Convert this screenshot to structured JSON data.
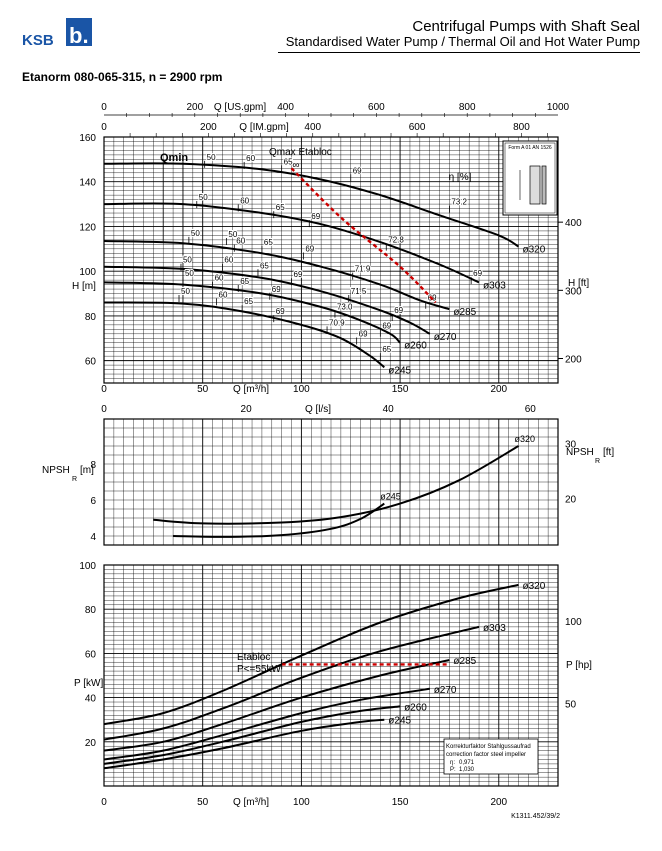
{
  "header": {
    "brand": "KSB",
    "brand_mark": "b.",
    "title": "Centrifugal Pumps with Shaft Seal",
    "subtitle": "Standardised Water Pump / Thermal Oil and Hot Water Pump"
  },
  "pump": {
    "title": "Etanorm 080-065-315, n = 2900 rpm"
  },
  "chart_data": {
    "type": "line",
    "x_axes": {
      "q_usgpm": {
        "label": "Q [US.gpm]",
        "max": 1000,
        "ticks": [
          "0",
          "200",
          "400",
          "600",
          "800",
          "1000"
        ]
      },
      "q_imgpm": {
        "label": "Q [IM.gpm]",
        "max": 800,
        "ticks": [
          "0",
          "200",
          "400",
          "600",
          "800"
        ]
      },
      "q_m3h": {
        "label": "Q [m³/h]",
        "max": 230,
        "ticks": [
          "0",
          "50",
          "100",
          "150",
          "200"
        ]
      },
      "q_ls": {
        "label": "Q [l/s]",
        "max": 63.9,
        "ticks": [
          "0",
          "20",
          "40",
          "60"
        ]
      }
    },
    "head_chart": {
      "ylabel": "H [m]",
      "ylabel_right": "H [ft]",
      "ylim": [
        50,
        160
      ],
      "yticks": [
        "60",
        "80",
        "100",
        "120",
        "140",
        "160"
      ],
      "yticks_right": [
        "200",
        "300",
        "400"
      ],
      "diameters": [
        {
          "name": "ø320",
          "points": [
            [
              0,
              148
            ],
            [
              40,
              148
            ],
            [
              80,
              145.5
            ],
            [
              110,
              141
            ],
            [
              140,
              134
            ],
            [
              170,
              125
            ],
            [
              200,
              116
            ],
            [
              210,
              111
            ]
          ]
        },
        {
          "name": "ø303",
          "points": [
            [
              0,
              130
            ],
            [
              40,
              130
            ],
            [
              80,
              126
            ],
            [
              110,
              121
            ],
            [
              140,
              113
            ],
            [
              170,
              103
            ],
            [
              190,
              95
            ]
          ]
        },
        {
          "name": "ø285",
          "points": [
            [
              0,
              113.5
            ],
            [
              40,
              112.5
            ],
            [
              80,
              108
            ],
            [
              110,
              102
            ],
            [
              140,
              94
            ],
            [
              160,
              87
            ],
            [
              175,
              83
            ]
          ]
        },
        {
          "name": "ø270",
          "points": [
            [
              0,
              102
            ],
            [
              40,
              101
            ],
            [
              80,
              97
            ],
            [
              110,
              91
            ],
            [
              140,
              82.5
            ],
            [
              155,
              77
            ],
            [
              165,
              72
            ]
          ]
        },
        {
          "name": "ø260",
          "points": [
            [
              0,
              95
            ],
            [
              40,
              94
            ],
            [
              80,
              90
            ],
            [
              110,
              84
            ],
            [
              130,
              78
            ],
            [
              145,
              72
            ],
            [
              150,
              68
            ]
          ]
        },
        {
          "name": "ø245",
          "points": [
            [
              0,
              86
            ],
            [
              40,
              85.5
            ],
            [
              70,
              82
            ],
            [
              100,
              76
            ],
            [
              120,
              70
            ],
            [
              135,
              62
            ],
            [
              142,
              57
            ]
          ]
        }
      ],
      "efficiency_labels": [
        {
          "text": "50",
          "q": 51,
          "h": 148
        },
        {
          "text": "60",
          "q": 71,
          "h": 147.5
        },
        {
          "text": "65",
          "q": 90,
          "h": 146
        },
        {
          "text": "69",
          "q": 125,
          "h": 142
        },
        {
          "text": "73.2",
          "q": 175,
          "h": 128
        },
        {
          "text": "50",
          "q": 47,
          "h": 130
        },
        {
          "text": "60",
          "q": 68,
          "h": 128.5
        },
        {
          "text": "65",
          "q": 86,
          "h": 125.5
        },
        {
          "text": "69",
          "q": 104,
          "h": 121.5
        },
        {
          "text": "72.8",
          "q": 143,
          "h": 111
        },
        {
          "text": "69",
          "q": 186,
          "h": 96
        },
        {
          "text": "50",
          "q": 43,
          "h": 114
        },
        {
          "text": "50",
          "q": 62,
          "h": 113.5
        },
        {
          "text": "60",
          "q": 66,
          "h": 110.5
        },
        {
          "text": "65",
          "q": 80,
          "h": 110
        },
        {
          "text": "69",
          "q": 101,
          "h": 107
        },
        {
          "text": "71.9",
          "q": 126,
          "h": 98
        },
        {
          "text": "69",
          "q": 163,
          "h": 85
        },
        {
          "text": "50",
          "q": 39,
          "h": 102
        },
        {
          "text": "60",
          "q": 60,
          "h": 102
        },
        {
          "text": "65",
          "q": 78,
          "h": 99.5
        },
        {
          "text": "69",
          "q": 95,
          "h": 95.5
        },
        {
          "text": "71.5",
          "q": 124,
          "h": 88
        },
        {
          "text": "69",
          "q": 146,
          "h": 79.5
        },
        {
          "text": "50",
          "q": 40,
          "h": 96
        },
        {
          "text": "60",
          "q": 55,
          "h": 94
        },
        {
          "text": "65",
          "q": 68,
          "h": 92.5
        },
        {
          "text": "69",
          "q": 84,
          "h": 89
        },
        {
          "text": "73.0",
          "q": 117,
          "h": 81
        },
        {
          "text": "69",
          "q": 140,
          "h": 72.5
        },
        {
          "text": "50",
          "q": 38,
          "h": 88
        },
        {
          "text": "60",
          "q": 57,
          "h": 86.5
        },
        {
          "text": "65",
          "q": 70,
          "h": 83.5
        },
        {
          "text": "69",
          "q": 86,
          "h": 79
        },
        {
          "text": "70.9",
          "q": 113,
          "h": 74
        },
        {
          "text": "69",
          "q": 128,
          "h": 69
        },
        {
          "text": "65",
          "q": 140,
          "h": 62
        }
      ],
      "qmin_label": "Qmin",
      "qmax_label": "Qmax Etabloc",
      "qmax_symbol": "∞",
      "eta_label": "η [%]",
      "qmax_line": [
        [
          95,
          146
        ],
        [
          120,
          124
        ],
        [
          150,
          102
        ],
        [
          168,
          86
        ]
      ],
      "inset_text": "Form A 01 AN 1526"
    },
    "npsh_chart": {
      "ylabel": "NPSH",
      "ylabel_sub": "R",
      "ylabel_unit": "[m]",
      "ylabel_right": "NPSH",
      "ylabel_right_sub": "R",
      "ylabel_right_unit": "[ft]",
      "ylim": [
        3.5,
        10.5
      ],
      "yticks": [
        "4",
        "6",
        "8"
      ],
      "yticks_right": [
        "20",
        "30"
      ],
      "series": [
        {
          "name": "ø320",
          "points": [
            [
              25,
              4.9
            ],
            [
              50,
              4.7
            ],
            [
              90,
              4.75
            ],
            [
              120,
              5.05
            ],
            [
              150,
              5.8
            ],
            [
              180,
              7.1
            ],
            [
              210,
              9.0
            ]
          ]
        },
        {
          "name": "ø245",
          "points": [
            [
              35,
              4.0
            ],
            [
              60,
              3.95
            ],
            [
              90,
              4.05
            ],
            [
              115,
              4.4
            ],
            [
              130,
              4.95
            ],
            [
              142,
              5.8
            ]
          ]
        }
      ]
    },
    "power_chart": {
      "ylabel": "P [kW]",
      "ylabel_right": "P [hp]",
      "ylim": [
        0,
        100
      ],
      "yticks": [
        "20",
        "40",
        "60",
        "80",
        "100"
      ],
      "yticks_right": [
        "50",
        "100"
      ],
      "series": [
        {
          "name": "ø320",
          "points": [
            [
              0,
              28
            ],
            [
              30,
              33
            ],
            [
              60,
              43
            ],
            [
              100,
              59
            ],
            [
              140,
              74
            ],
            [
              180,
              85
            ],
            [
              210,
              91
            ]
          ]
        },
        {
          "name": "ø303",
          "points": [
            [
              0,
              21
            ],
            [
              30,
              26
            ],
            [
              60,
              35
            ],
            [
              100,
              49
            ],
            [
              140,
              61
            ],
            [
              190,
              72
            ]
          ]
        },
        {
          "name": "ø285",
          "points": [
            [
              0,
              16
            ],
            [
              30,
              20
            ],
            [
              60,
              28
            ],
            [
              100,
              40
            ],
            [
              140,
              50
            ],
            [
              175,
              57
            ]
          ]
        },
        {
          "name": "ø270",
          "points": [
            [
              0,
              12
            ],
            [
              30,
              16
            ],
            [
              60,
              23
            ],
            [
              100,
              33
            ],
            [
              130,
              39
            ],
            [
              165,
              44
            ]
          ]
        },
        {
          "name": "ø260",
          "points": [
            [
              0,
              10
            ],
            [
              30,
              14
            ],
            [
              60,
              20
            ],
            [
              100,
              29
            ],
            [
              130,
              34
            ],
            [
              150,
              36
            ]
          ]
        },
        {
          "name": "ø245",
          "points": [
            [
              0,
              8
            ],
            [
              30,
              12
            ],
            [
              60,
              17
            ],
            [
              100,
              25
            ],
            [
              130,
              29
            ],
            [
              142,
              30
            ]
          ]
        }
      ],
      "etabloc_label": "Etabloc",
      "etabloc_limit_label": "P<=55kW",
      "etabloc_limit_kw": 55,
      "etabloc_limit_q": [
        90,
        175
      ],
      "correction_note": {
        "line1": "Korrekturfaktor Stahlgussaufrad",
        "line2": "correction factor steel impeller",
        "eta_label": "η:",
        "eta_value": "0,971",
        "p_label": "P:",
        "p_value": "1,030"
      }
    },
    "footer_code": "K1311.452/39/2"
  },
  "colors": {
    "curve": "#000000",
    "grid": "#000000",
    "limit": "#cc0000"
  }
}
